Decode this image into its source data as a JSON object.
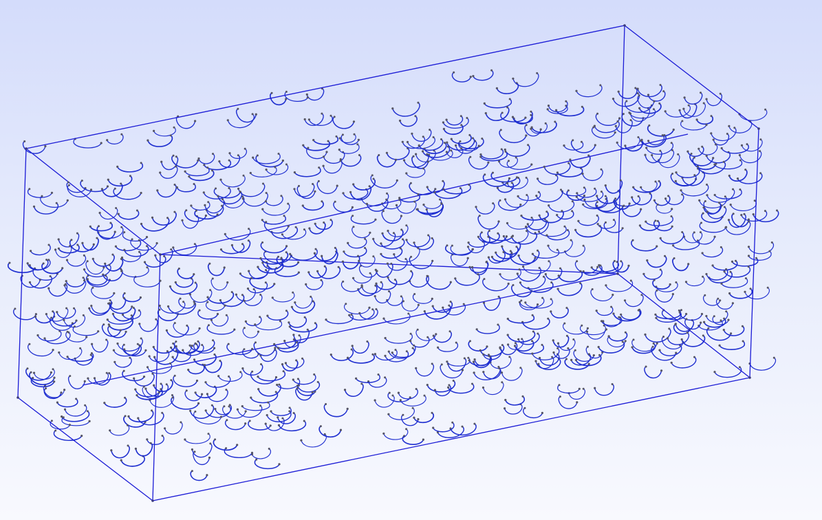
{
  "scene": {
    "type": "3d-wireframe-viewer",
    "description_visible_text": "",
    "box": {
      "edge_color": "#1a1ad6",
      "vertex_color": "#3a3a7a"
    },
    "fibers": {
      "shape": "curled hook arcs",
      "color": "#1f2fd0",
      "end_marker_color": "#555566",
      "approx_count": 700
    },
    "background": {
      "top_color": "#d4dcfb",
      "bottom_color": "#f8f9fe"
    }
  }
}
